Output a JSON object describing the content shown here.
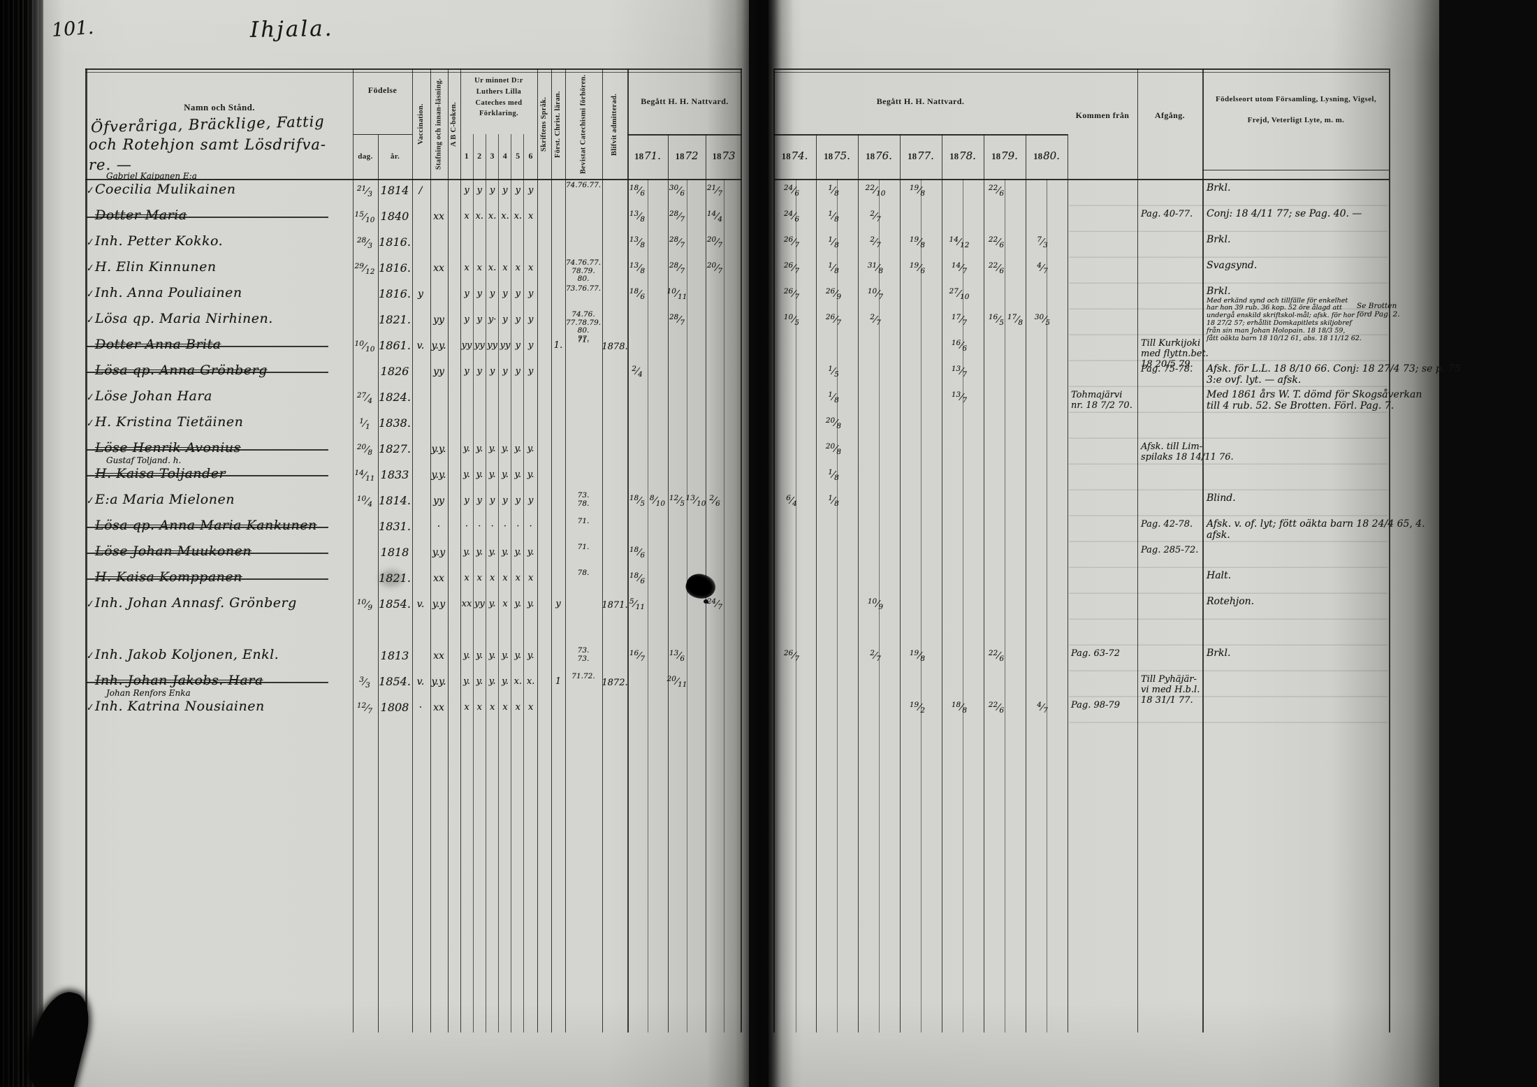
{
  "page": {
    "number": "101.",
    "title": "Ihjala."
  },
  "header": {
    "name_col": {
      "printed": "Namn och Stånd.",
      "handwritten": [
        "Öfveråriga, Bräcklige, Fattig",
        "och Rotehjon samt Lösdrifva-",
        "re. —"
      ]
    },
    "birth": {
      "label": "Födelse",
      "day": "dag.",
      "year": "år."
    },
    "vaccination": "Vaccination.",
    "stafning": "Stafning och innan-läsning.",
    "abc": "A B C-boken.",
    "ur_minnet": {
      "label": "Ur minnet D:r Luthers Lilla Cateches med Förklaring.",
      "numbers": [
        "1",
        "2",
        "3",
        "4",
        "5",
        "6"
      ]
    },
    "skriftens": "Skriftens Språk.",
    "forst": "Först. Christ. läran.",
    "bevistat": "Bevistat Catechismi förhören.",
    "blifvit": "Blifvit admitterad.",
    "nattvard_left": {
      "label": "Begått H. H. Nattvard.",
      "years": [
        {
          "printed": "18",
          "hw": "71."
        },
        {
          "printed": "18",
          "hw": "72"
        },
        {
          "printed": "18",
          "hw": "73"
        }
      ]
    },
    "nattvard_right": {
      "label": "Begått H. H. Nattvard.",
      "years": [
        {
          "printed": "18",
          "hw": "74."
        },
        {
          "printed": "18",
          "hw": "75."
        },
        {
          "printed": "18",
          "hw": "76."
        },
        {
          "printed": "18",
          "hw": "77."
        },
        {
          "printed": "18",
          "hw": "78."
        },
        {
          "printed": "18",
          "hw": "79."
        },
        {
          "printed": "18",
          "hw": "80."
        }
      ]
    },
    "kommen": "Kommen från",
    "afgang": "Afgång.",
    "notes": [
      "Födelseort utom Församling, Lysning, Vigsel,",
      "Frejd, Veterligt Lyte, m. m."
    ]
  },
  "rows": [
    {
      "tick": true,
      "sub": "Gabriel Kaipanen E:a",
      "name": "Coecilia Mulikainen",
      "dag": "21/3",
      "ar": "1814",
      "vacc": "/",
      "staf": "",
      "abc": [
        "y",
        "y",
        "y",
        "y",
        "y",
        "y"
      ],
      "bev": [
        "74.76.77."
      ],
      "years": {
        "y71a": "18/6",
        "y72a": "30/6",
        "y73a": "21/7",
        "y74a": "24/6",
        "y75a": "1/8",
        "y76a": "22/10",
        "y77a": "19/8",
        "y79a": "22/6"
      },
      "notes": [
        "Brkl."
      ]
    },
    {
      "struck": true,
      "name": "Dotter Maria",
      "dag": "15/10",
      "ar": "1840",
      "staf": "xx",
      "abc": [
        "x",
        "x.",
        "x.",
        "x.",
        "x.",
        "x"
      ],
      "years": {
        "y71a": "13/8",
        "y72a": "28/7",
        "y73a": "14/4",
        "y74a": "24/6",
        "y75a": "1/8",
        "y76a": "2/7"
      },
      "afgang": [
        "Pag. 40-77."
      ],
      "notes": [
        "Conj: 18 4/11 77; se Pag. 40. —"
      ]
    },
    {
      "tick": true,
      "name": "Inh. Petter Kokko.",
      "dag": "28/3",
      "ar": "1816.",
      "years": {
        "y71a": "13/8",
        "y72a": "28/7",
        "y73a": "20/7",
        "y74a": "26/7",
        "y75a": "1/8",
        "y76a": "2/7",
        "y77a": "19/8",
        "y78a": "14/12",
        "y79a": "22/6",
        "y80a": "7/3"
      },
      "notes": [
        "Brkl."
      ]
    },
    {
      "tick": true,
      "name": "H. Elin Kinnunen",
      "dag": "29/12",
      "ar": "1816.",
      "staf": "xx",
      "abc": [
        "x",
        "x",
        "x.",
        "x",
        "x",
        "x"
      ],
      "bev": [
        "74.76.77.",
        "78.79.",
        "80."
      ],
      "years": {
        "y71a": "13/8",
        "y72a": "28/7",
        "y73a": "20/7",
        "y74a": "26/7",
        "y75a": "1/8",
        "y76a": "31/8",
        "y77a": "19/6",
        "y78a": "14/7",
        "y79a": "22/6",
        "y80a": "4/7"
      },
      "notes": [
        "Svagsynd."
      ]
    },
    {
      "tick": true,
      "name": "Inh. Anna Pouliainen",
      "ar": "1816.",
      "vacc": "y",
      "abc": [
        "y",
        "y",
        "y",
        "y",
        "y",
        "y"
      ],
      "bev": [
        "73.76.77."
      ],
      "years": {
        "y71a": "18/6",
        "y72a": "10/11",
        "y74a": "26/7",
        "y75a": "26/9",
        "y76a": "10/7",
        "y78a": "27/10"
      },
      "notes": [
        "Brkl."
      ],
      "notes_small": [
        "Med erkänd synd och tillfälle för enkelhet",
        "har hon 39 rub. 36 kop. 52 öre ålagd att",
        "undergå enskild skriftskol-mål; afsk. för hor",
        "18 27/2 57; erhållit Domkapitlets skiljobref",
        "från sin man Johan Holopain. 18 18/3 59,",
        "fått oäkta barn 18 10/12 61, abs. 18 11/12 62."
      ],
      "side_note": [
        "Se Brotten",
        "förd Pag. 2."
      ]
    },
    {
      "tick": true,
      "name": "Lösa qp. Maria Nirhinen.",
      "ar": "1821.",
      "staf": "yy",
      "abc": [
        "y",
        "y",
        "y·",
        "y",
        "y",
        "y"
      ],
      "bev": [
        "74.76.",
        "77.78.79.",
        "80.",
        "77."
      ],
      "years": {
        "y72a": "28/7",
        "y74a": "10/5",
        "y75a": "26/7",
        "y76a": "2/7",
        "y78a": "17/7",
        "y79a": "16/5",
        "y79b": "17/8",
        "y80a": "30/5"
      }
    },
    {
      "struck": true,
      "name": "Dotter Anna Brita",
      "dag": "10/10",
      "ar": "1861.",
      "vacc": "v.",
      "staf": "y.y.",
      "abc": [
        "yy",
        "yy",
        "yy",
        "yy",
        "y",
        "y"
      ],
      "forst": "1.",
      "bev": [
        "71."
      ],
      "blifvit": "1878.",
      "years": {
        "y78a": "16/6"
      },
      "afgang": [
        "Till Kurkijoki",
        "med flyttn.bet.",
        "18 20/5 79."
      ]
    },
    {
      "struck": true,
      "name": "Lösa qp. Anna Grönberg",
      "ar": "1826",
      "staf": "yy",
      "abc": [
        "y",
        "y",
        "y",
        "y",
        "y",
        "y"
      ],
      "years": {
        "y71a": "2/4",
        "y75a": "1/5",
        "y78a": "13/7"
      },
      "afgang": [
        "Pag. 75-78."
      ],
      "notes": [
        "Afsk. för L.L. 18 8/10 66. Conj: 18 27/4 73; se p. 75",
        "3:e ovf. lyt. — afsk."
      ]
    },
    {
      "tick": true,
      "name": "Löse Johan Hara",
      "dag": "27/4",
      "ar": "1824.",
      "years": {
        "y75a": "1/8",
        "y78a": "13/7"
      },
      "kommen": [
        "Tohmajärvi",
        "nr. 18 7/2 70."
      ],
      "notes": [
        "Med 1861 års W. T. dömd för Skogsåverkan",
        "till 4 rub. 52. Se Brotten. Förl. Pag. 7."
      ]
    },
    {
      "tick": true,
      "name": "H. Kristina Tietäinen",
      "dag": "1/1",
      "ar": "1838.",
      "years": {
        "y75a": "20/8"
      }
    },
    {
      "struck": true,
      "name": "Löse Henrik Avonius",
      "dag": "20/8",
      "ar": "1827.",
      "staf": "y.y.",
      "abc": [
        "y.",
        "y.",
        "y.",
        "y.",
        "y.",
        "y."
      ],
      "years": {
        "y75a": "20/8"
      },
      "afgang": [
        "Afsk. till Lim-",
        "spilaks 18 14/11 76."
      ]
    },
    {
      "struck": true,
      "sub": "Gustaf Toljand. h.",
      "name": "H. Kaisa Toljander",
      "dag": "14/11",
      "ar": "1833",
      "staf": "y.y.",
      "abc": [
        "y.",
        "y.",
        "y.",
        "y.",
        "y.",
        "y."
      ],
      "years": {
        "y75a": "1/8"
      }
    },
    {
      "tick": true,
      "name": "E:a Maria Mielonen",
      "dag": "10/4",
      "ar": "1814.",
      "staf": "yy",
      "abc": [
        "y",
        "y",
        "y",
        "y",
        "y",
        "y"
      ],
      "bev": [
        "73.",
        "78."
      ],
      "years": {
        "y71a": "18/5",
        "y71b": "8/10",
        "y72a": "12/5",
        "y72b": "13/10",
        "y73a": "2/6",
        "y74a": "6/4",
        "y75a": "1/8"
      },
      "notes": [
        "Blind."
      ]
    },
    {
      "struck": true,
      "name": "Lösa qp. Anna Maria Kankunen",
      "ar": "1831.",
      "staf": "·",
      "abc": [
        "·",
        "·",
        "·",
        "·",
        "·",
        "·"
      ],
      "bev": [
        "71."
      ],
      "afgang": [
        "Pag. 42-78."
      ],
      "notes": [
        "Afsk. v. of. lyt; fött oäkta barn 18 24/4 65, 4.",
        "afsk."
      ]
    },
    {
      "struck": true,
      "name": "Löse Johan Muukonen",
      "ar": "1818",
      "staf": "y.y",
      "abc": [
        "y.",
        "y.",
        "y.",
        "y.",
        "y.",
        "y."
      ],
      "bev": [
        "71."
      ],
      "years": {
        "y71a": "18/6"
      },
      "afgang": [
        "Pag. 285-72."
      ]
    },
    {
      "struck": true,
      "name": "H. Kaisa Komppanen",
      "ar": "1821.",
      "staf": "xx",
      "abc": [
        "x",
        "x",
        "x",
        "x",
        "x",
        "x"
      ],
      "bev": [
        "78."
      ],
      "years": {
        "y71a": "18/6"
      },
      "notes": [
        "Halt."
      ]
    },
    {
      "tick": true,
      "name": "Inh. Johan Annasf. Grönberg",
      "dag": "10/9",
      "ar": "1854.",
      "vacc": "v.",
      "staf": "y.y",
      "abc": [
        "xx",
        "yy",
        "y.",
        "x",
        "y.",
        "y."
      ],
      "forst": "y",
      "blifvit": "1871.",
      "years": {
        "y71a": "5/11",
        "y73a": "24/7",
        "y76a": "10/9"
      },
      "notes": [
        "Rotehjon."
      ]
    },
    {
      "gap": true,
      "tick": true,
      "name": "Inh. Jakob Koljonen, Enkl.",
      "ar": "1813",
      "staf": "xx",
      "abc": [
        "y.",
        "y.",
        "y.",
        "y.",
        "y.",
        "y."
      ],
      "bev": [
        "73.",
        "73."
      ],
      "years": {
        "y71a": "16/7",
        "y72a": "13/6",
        "y74a": "26/7",
        "y76a": "2/7",
        "y77a": "19/8",
        "y79a": "22/6"
      },
      "kommen": [
        "Pag. 63-72"
      ],
      "notes": [
        "Brkl."
      ]
    },
    {
      "struck": true,
      "name": "Inh. Johan Jakobs. Hara",
      "dag": "3/3",
      "ar": "1854.",
      "vacc": "v.",
      "staf": "y.y.",
      "abc": [
        "y.",
        "y.",
        "y.",
        "y.",
        "x.",
        "x."
      ],
      "forst": "1",
      "bev": [
        "71.72."
      ],
      "blifvit": "1872.",
      "years": {
        "y72a": "20/11"
      },
      "afgang": [
        "Till Pyhäjär-",
        "vi med H.b.l.",
        "18 31/1 77."
      ]
    },
    {
      "tick": true,
      "sub": "Johan Renfors Enka",
      "name": "Inh. Katrina Nousiainen",
      "dag": "12/7",
      "ar": "1808",
      "vacc": "·",
      "staf": "xx",
      "abc": [
        "x",
        "x",
        "x",
        "x",
        "x",
        "x"
      ],
      "years": {
        "y77a": "19/2",
        "y78a": "18/8",
        "y79a": "22/6",
        "y80a": "4/7"
      },
      "kommen": [
        "Pag. 98-79"
      ]
    }
  ]
}
